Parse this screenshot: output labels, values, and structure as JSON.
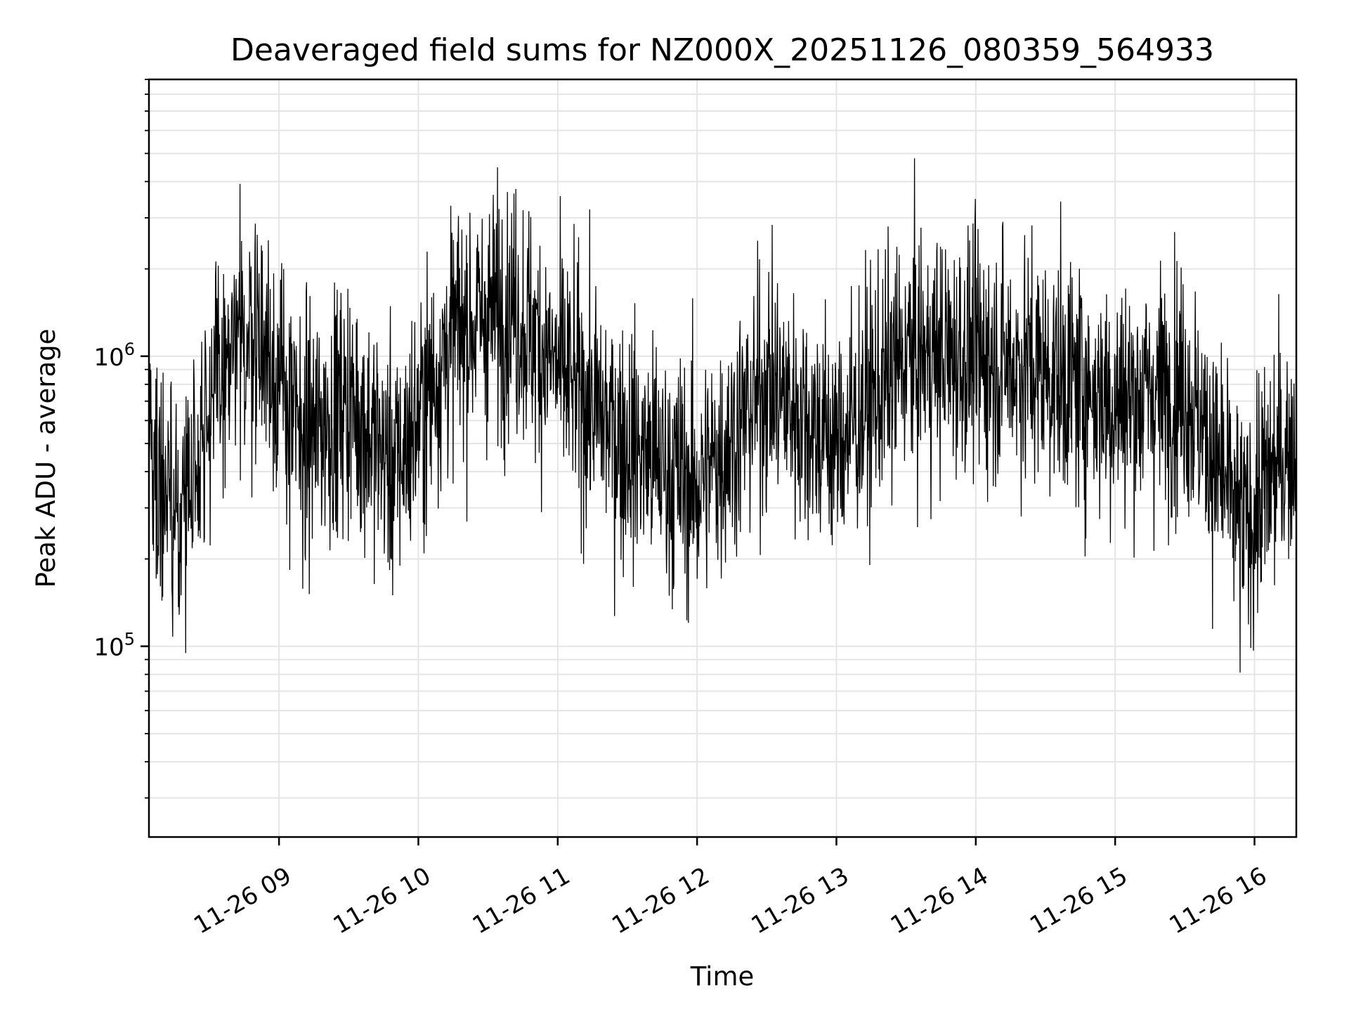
{
  "chart_data": {
    "type": "line",
    "title": "Deaveraged field sums for NZ000X_20251126_080359_564933",
    "xlabel": "Time",
    "ylabel": "Peak ADU - average",
    "yscale": "log",
    "xlim": [
      "11-26 08:04",
      "11-26 16:18"
    ],
    "ylim": [
      22000,
      9000000
    ],
    "x_ticks": [
      "11-26 09",
      "11-26 10",
      "11-26 11",
      "11-26 12",
      "11-26 13",
      "11-26 14",
      "11-26 15",
      "11-26 16"
    ],
    "y_ticks": [
      {
        "base": "10",
        "exp": "5",
        "value": 100000
      },
      {
        "base": "10",
        "exp": "6",
        "value": 1000000
      }
    ],
    "grid": true,
    "line_color": "#000000",
    "approximate_envelope": [
      {
        "x": "11-26 08:05",
        "y": 500000
      },
      {
        "x": "11-26 08:15",
        "y": 250000
      },
      {
        "x": "11-26 08:30",
        "y": 700000
      },
      {
        "x": "11-26 08:50",
        "y": 1300000
      },
      {
        "x": "11-26 09:10",
        "y": 500000
      },
      {
        "x": "11-26 09:30",
        "y": 700000
      },
      {
        "x": "11-26 09:50",
        "y": 400000
      },
      {
        "x": "11-26 10:15",
        "y": 1200000
      },
      {
        "x": "11-26 10:40",
        "y": 1500000
      },
      {
        "x": "11-26 11:00",
        "y": 900000
      },
      {
        "x": "11-26 11:30",
        "y": 500000
      },
      {
        "x": "11-26 12:00",
        "y": 350000
      },
      {
        "x": "11-26 12:30",
        "y": 800000
      },
      {
        "x": "11-26 13:00",
        "y": 500000
      },
      {
        "x": "11-26 13:30",
        "y": 1000000
      },
      {
        "x": "11-26 14:00",
        "y": 1000000
      },
      {
        "x": "11-26 14:30",
        "y": 900000
      },
      {
        "x": "11-26 15:00",
        "y": 700000
      },
      {
        "x": "11-26 15:30",
        "y": 800000
      },
      {
        "x": "11-26 15:55",
        "y": 250000
      },
      {
        "x": "11-26 16:15",
        "y": 500000
      }
    ]
  }
}
